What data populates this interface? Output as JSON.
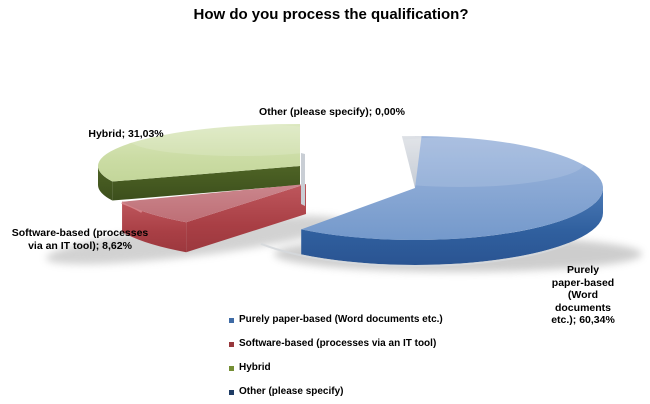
{
  "title": "How do you process the qualification?",
  "chart_data": {
    "type": "pie",
    "style": "3d-exploded",
    "title": "How do you process the qualification?",
    "labels": [
      "Purely paper-based (Word documents etc.)",
      "Software-based (processes via an IT tool)",
      "Hybrid",
      "Other (please specify)"
    ],
    "values": [
      60.34,
      8.62,
      31.03,
      0
    ],
    "value_labels": [
      "60,34%",
      "8,62%",
      "31,03%",
      "0,00%"
    ],
    "colors": [
      "#4F81BD",
      "#C0504D",
      "#9BBB59",
      "#1F3864"
    ],
    "legend_position": "bottom-left",
    "background": "#FFFFFF",
    "start_angle": 0,
    "direction": "clockwise"
  },
  "slice_labels": {
    "purely": "Purely paper-based (Word\ndocuments etc.); 60,34%",
    "software": "Software-based (processes\nvia an IT tool); 8,62%",
    "hybrid": "Hybrid; 31,03%",
    "other": "Other (please specify); 0,00%"
  },
  "legend": {
    "items": [
      {
        "label": "Purely paper-based (Word documents etc.)",
        "color": "#3F6BA5"
      },
      {
        "label": "Software-based (processes via an IT tool)",
        "color": "#97373B"
      },
      {
        "label": "Hybrid",
        "color": "#748E34"
      },
      {
        "label": "Other (please specify)",
        "color": "#1E3C64"
      }
    ]
  }
}
